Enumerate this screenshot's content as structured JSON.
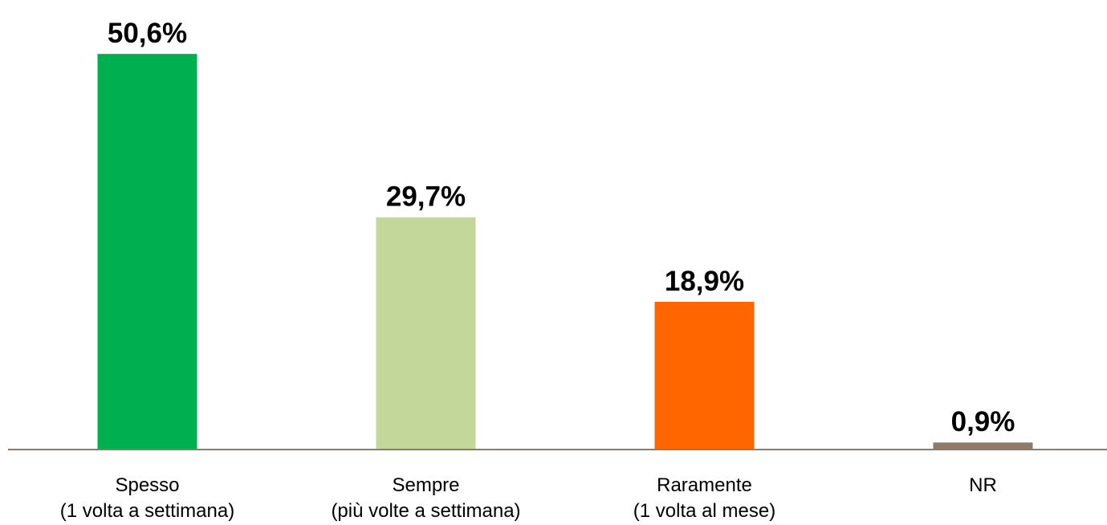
{
  "chart_data": {
    "type": "bar",
    "categories": [
      [
        "Spesso",
        "(1 volta a settimana)"
      ],
      [
        "Sempre",
        "(più volte a settimana)"
      ],
      [
        "Raramente",
        "(1 volta al mese)"
      ],
      [
        "NR"
      ]
    ],
    "values": [
      50.6,
      29.7,
      18.9,
      0.9
    ],
    "value_labels": [
      "50,6%",
      "29,7%",
      "18,9%",
      "0,9%"
    ],
    "colors": [
      "#00b050",
      "#c4d79b",
      "#ff6600",
      "#8c7b6b"
    ],
    "grid": false
  }
}
